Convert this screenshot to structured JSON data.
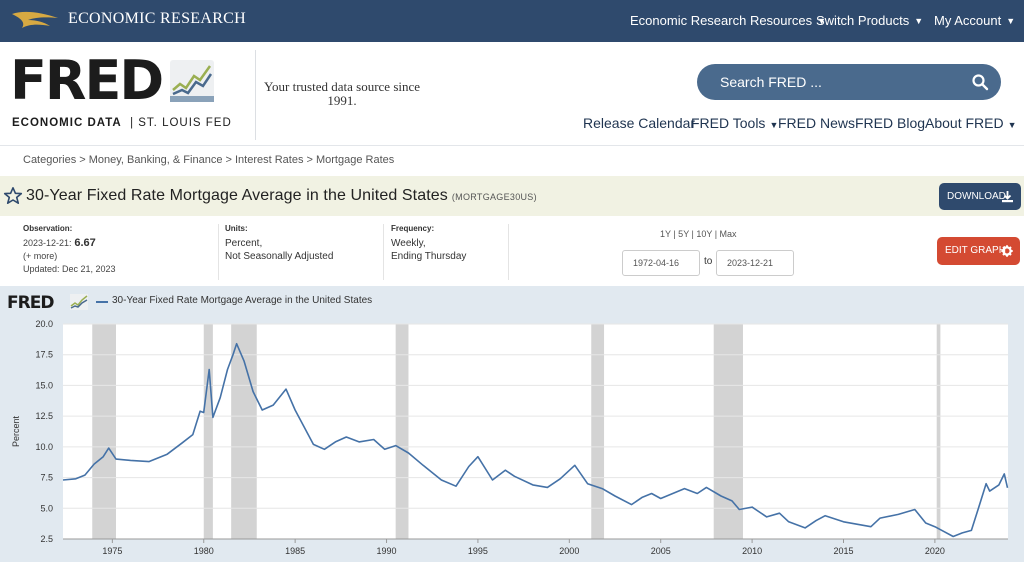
{
  "topbar": {
    "brand": "ECONOMIC RESEARCH",
    "menu": [
      "Economic Research Resources",
      "Switch Products",
      "My Account"
    ]
  },
  "header": {
    "logo_word": "FRED",
    "logo_sub_bold": "ECONOMIC DATA",
    "logo_sub_rest": "|  ST. LOUIS FED",
    "tagline": "Your trusted data source since 1991.",
    "search_placeholder": "Search FRED ...",
    "nav": [
      "Release Calendar",
      "FRED Tools",
      "FRED News",
      "FRED Blog",
      "About FRED"
    ]
  },
  "breadcrumb": "Categories > Money, Banking, & Finance > Interest Rates > Mortgage Rates",
  "series": {
    "title": "30-Year Fixed Rate Mortgage Average in the United States",
    "id": "(MORTGAGE30US)",
    "download_label": "DOWNLOAD",
    "edit_label": "EDIT GRAPH"
  },
  "meta": {
    "observation_label": "Observation:",
    "observation_date": "2023-12-21:",
    "observation_value": "6.67",
    "more": "(+ more)",
    "updated": "Updated: Dec 21, 2023",
    "units_label": "Units:",
    "units_1": "Percent,",
    "units_2": "Not Seasonally Adjusted",
    "frequency_label": "Frequency:",
    "frequency_1": "Weekly,",
    "frequency_2": "Ending Thursday",
    "ranges": "1Y | 5Y | 10Y | Max",
    "start_date": "1972-04-16",
    "to": "to",
    "end_date": "2023-12-21"
  },
  "colors": {
    "brand": "#2f4a6d",
    "series": "#4572a7",
    "edit": "#d44a32",
    "recession": "#d3d3d3"
  },
  "chart_data": {
    "type": "line",
    "title": "30-Year Fixed Rate Mortgage Average in the United States",
    "ylabel": "Percent",
    "ylim": [
      2.5,
      20.0
    ],
    "xlim": [
      1972.3,
      2024.0
    ],
    "yticks": [
      "2.5",
      "5.0",
      "7.5",
      "10.0",
      "12.5",
      "15.0",
      "17.5",
      "20.0"
    ],
    "xticks": [
      "1975",
      "1980",
      "1985",
      "1990",
      "1995",
      "2000",
      "2005",
      "2010",
      "2015",
      "2020"
    ],
    "recessions": [
      [
        1973.9,
        1975.2
      ],
      [
        1980.0,
        1980.5
      ],
      [
        1981.5,
        1982.9
      ],
      [
        1990.5,
        1991.2
      ],
      [
        2001.2,
        2001.9
      ],
      [
        2007.9,
        2009.5
      ],
      [
        2020.1,
        2020.3
      ]
    ],
    "series": [
      {
        "name": "30-Year Fixed Rate Mortgage Average in the United States",
        "x": [
          1972.3,
          1973.0,
          1973.5,
          1974.0,
          1974.5,
          1974.8,
          1975.2,
          1976.0,
          1977.0,
          1978.0,
          1978.8,
          1979.4,
          1979.8,
          1980.0,
          1980.3,
          1980.5,
          1980.9,
          1981.3,
          1981.6,
          1981.8,
          1982.2,
          1982.7,
          1983.2,
          1983.8,
          1984.5,
          1985.0,
          1986.0,
          1986.6,
          1987.2,
          1987.8,
          1988.5,
          1989.3,
          1989.9,
          1990.5,
          1991.2,
          1992.0,
          1993.0,
          1993.8,
          1994.5,
          1995.0,
          1995.8,
          1996.5,
          1997.0,
          1998.0,
          1998.8,
          1999.5,
          2000.3,
          2001.0,
          2001.8,
          2002.5,
          2003.4,
          2004.0,
          2004.5,
          2005.0,
          2006.3,
          2007.0,
          2007.5,
          2008.3,
          2008.9,
          2009.3,
          2010.0,
          2010.8,
          2011.5,
          2012.0,
          2012.9,
          2013.5,
          2014.0,
          2015.0,
          2016.5,
          2017.0,
          2018.0,
          2018.9,
          2019.5,
          2020.0,
          2020.5,
          2021.0,
          2021.5,
          2022.0,
          2022.4,
          2022.8,
          2023.0,
          2023.5,
          2023.8,
          2023.97
        ],
        "values": [
          7.3,
          7.4,
          7.7,
          8.6,
          9.2,
          9.9,
          9.0,
          8.9,
          8.8,
          9.4,
          10.3,
          11.0,
          12.9,
          12.8,
          16.3,
          12.4,
          14.0,
          16.3,
          17.5,
          18.4,
          17.0,
          14.5,
          13.0,
          13.4,
          14.7,
          13.0,
          10.2,
          9.8,
          10.4,
          10.8,
          10.4,
          10.6,
          9.8,
          10.1,
          9.5,
          8.5,
          7.3,
          6.8,
          8.4,
          9.2,
          7.3,
          8.1,
          7.6,
          6.9,
          6.7,
          7.4,
          8.5,
          7.0,
          6.6,
          6.0,
          5.3,
          5.9,
          6.2,
          5.8,
          6.6,
          6.2,
          6.7,
          6.0,
          5.6,
          4.9,
          5.1,
          4.3,
          4.6,
          3.9,
          3.4,
          4.0,
          4.4,
          3.9,
          3.5,
          4.2,
          4.5,
          4.9,
          3.8,
          3.5,
          3.1,
          2.7,
          3.0,
          3.2,
          5.1,
          7.0,
          6.4,
          6.9,
          7.8,
          6.67
        ]
      }
    ]
  }
}
